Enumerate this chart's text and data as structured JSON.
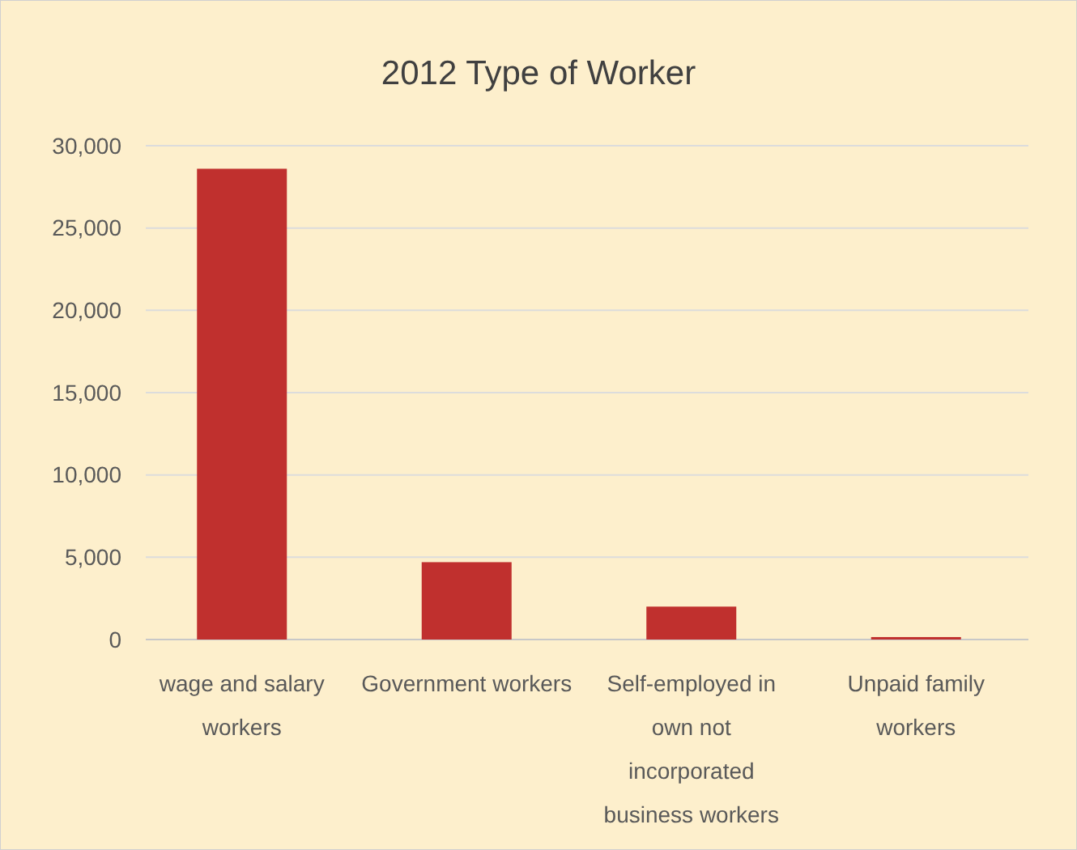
{
  "chart_data": {
    "type": "bar",
    "title": "2012 Type of Worker",
    "categories": [
      "wage and salary workers",
      "Government workers",
      "Self-employed in own not incorporated business workers",
      "Unpaid family workers"
    ],
    "values": [
      28600,
      4700,
      2000,
      150
    ],
    "color": "#c0302e",
    "ylim": [
      0,
      30000
    ],
    "yticks": [
      {
        "value": 0,
        "label": "0"
      },
      {
        "value": 5000,
        "label": "5,000"
      },
      {
        "value": 10000,
        "label": "10,000"
      },
      {
        "value": 15000,
        "label": "15,000"
      },
      {
        "value": 20000,
        "label": "20,000"
      },
      {
        "value": 25000,
        "label": "25,000"
      },
      {
        "value": 30000,
        "label": "30,000"
      }
    ],
    "grid": "y"
  }
}
